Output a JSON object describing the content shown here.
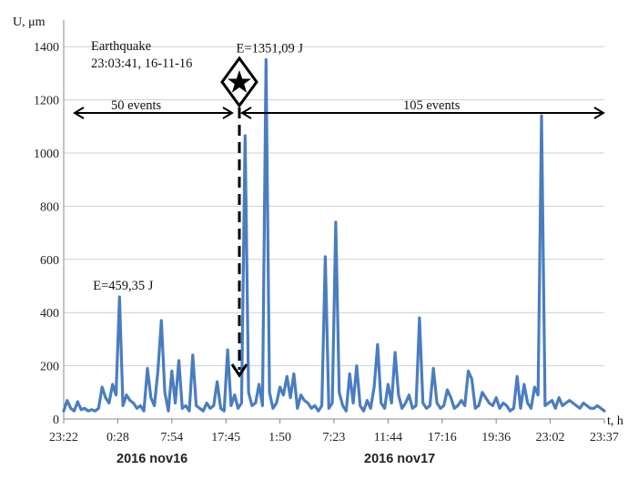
{
  "chart_data": {
    "type": "line",
    "ylabel": "U, μm",
    "xlabel": "t, h",
    "ylim": [
      0,
      1500
    ],
    "yticks": [
      0,
      200,
      400,
      600,
      800,
      1000,
      1200,
      1400
    ],
    "xticks": [
      "23:22",
      "0:28",
      "7:54",
      "17:45",
      "1:50",
      "7:23",
      "11:44",
      "17:16",
      "19:36",
      "23:02",
      "23:37"
    ],
    "date_labels": [
      "2016 nov16",
      "2016 nov17"
    ],
    "grid": true,
    "legend": "none",
    "series": [
      {
        "color": "#4a7dbf",
        "x": [
          0,
          1,
          2,
          3,
          4,
          5,
          6,
          7,
          8,
          9,
          10,
          11,
          12,
          13,
          14,
          15,
          16,
          17,
          18,
          19,
          20,
          21,
          22,
          23,
          24,
          25,
          26,
          27,
          28,
          29,
          30,
          31,
          32,
          33,
          34,
          35,
          36,
          37,
          38,
          39,
          40,
          41,
          42,
          43,
          44,
          45,
          46,
          47,
          48,
          49,
          50,
          51,
          52,
          53,
          54,
          55,
          56,
          57,
          58,
          59,
          60,
          61,
          62,
          63,
          64,
          65,
          66,
          67,
          68,
          69,
          70,
          71,
          72,
          73,
          74,
          75,
          76,
          77,
          78,
          79,
          80,
          81,
          82,
          83,
          84,
          85,
          86,
          87,
          88,
          89,
          90,
          91,
          92,
          93,
          94,
          95,
          96,
          97,
          98,
          99,
          100,
          101,
          102,
          103,
          104,
          105,
          106,
          107,
          108,
          109,
          110,
          111,
          112,
          113,
          114,
          115,
          116,
          117,
          118,
          119,
          120,
          121,
          122,
          123,
          124,
          125,
          126,
          127,
          128,
          129,
          130,
          131,
          132,
          133,
          134,
          135,
          136,
          137,
          138,
          139,
          140,
          141,
          142,
          143,
          144,
          145,
          146,
          147,
          148,
          149,
          150,
          151,
          152,
          153,
          154,
          155
        ],
        "y": [
          30,
          70,
          40,
          30,
          65,
          35,
          40,
          30,
          35,
          30,
          40,
          120,
          80,
          60,
          130,
          90,
          459,
          50,
          90,
          70,
          60,
          40,
          50,
          30,
          190,
          80,
          50,
          180,
          370,
          100,
          30,
          180,
          60,
          220,
          40,
          50,
          30,
          240,
          50,
          40,
          30,
          60,
          40,
          50,
          140,
          40,
          30,
          260,
          50,
          90,
          40,
          60,
          1065,
          100,
          50,
          60,
          130,
          50,
          1351,
          100,
          40,
          60,
          120,
          90,
          160,
          80,
          170,
          40,
          90,
          70,
          60,
          40,
          50,
          30,
          50,
          610,
          40,
          60,
          740,
          100,
          50,
          30,
          170,
          60,
          200,
          50,
          30,
          70,
          40,
          120,
          280,
          60,
          40,
          130,
          60,
          250,
          90,
          40,
          60,
          90,
          40,
          50,
          380,
          60,
          40,
          50,
          190,
          60,
          40,
          50,
          110,
          80,
          40,
          50,
          70,
          50,
          180,
          150,
          40,
          50,
          100,
          80,
          60,
          50,
          80,
          40,
          60,
          50,
          30,
          40,
          160,
          40,
          130,
          60,
          40,
          120,
          90,
          1140,
          50,
          60,
          70,
          40,
          80,
          50,
          60,
          70,
          60,
          50,
          40,
          60,
          50,
          40,
          40,
          50,
          40,
          30
        ],
        "peak_labels": [
          {
            "index": 16,
            "text": "E=459,35 J"
          },
          {
            "index": 58,
            "text": "E=1351,09 J"
          }
        ]
      }
    ],
    "annotations": {
      "earthquake_title": "Earthquake",
      "earthquake_time": "23:03:41, 16-11-16",
      "left_span": "50 events",
      "right_span": "105 events"
    }
  }
}
